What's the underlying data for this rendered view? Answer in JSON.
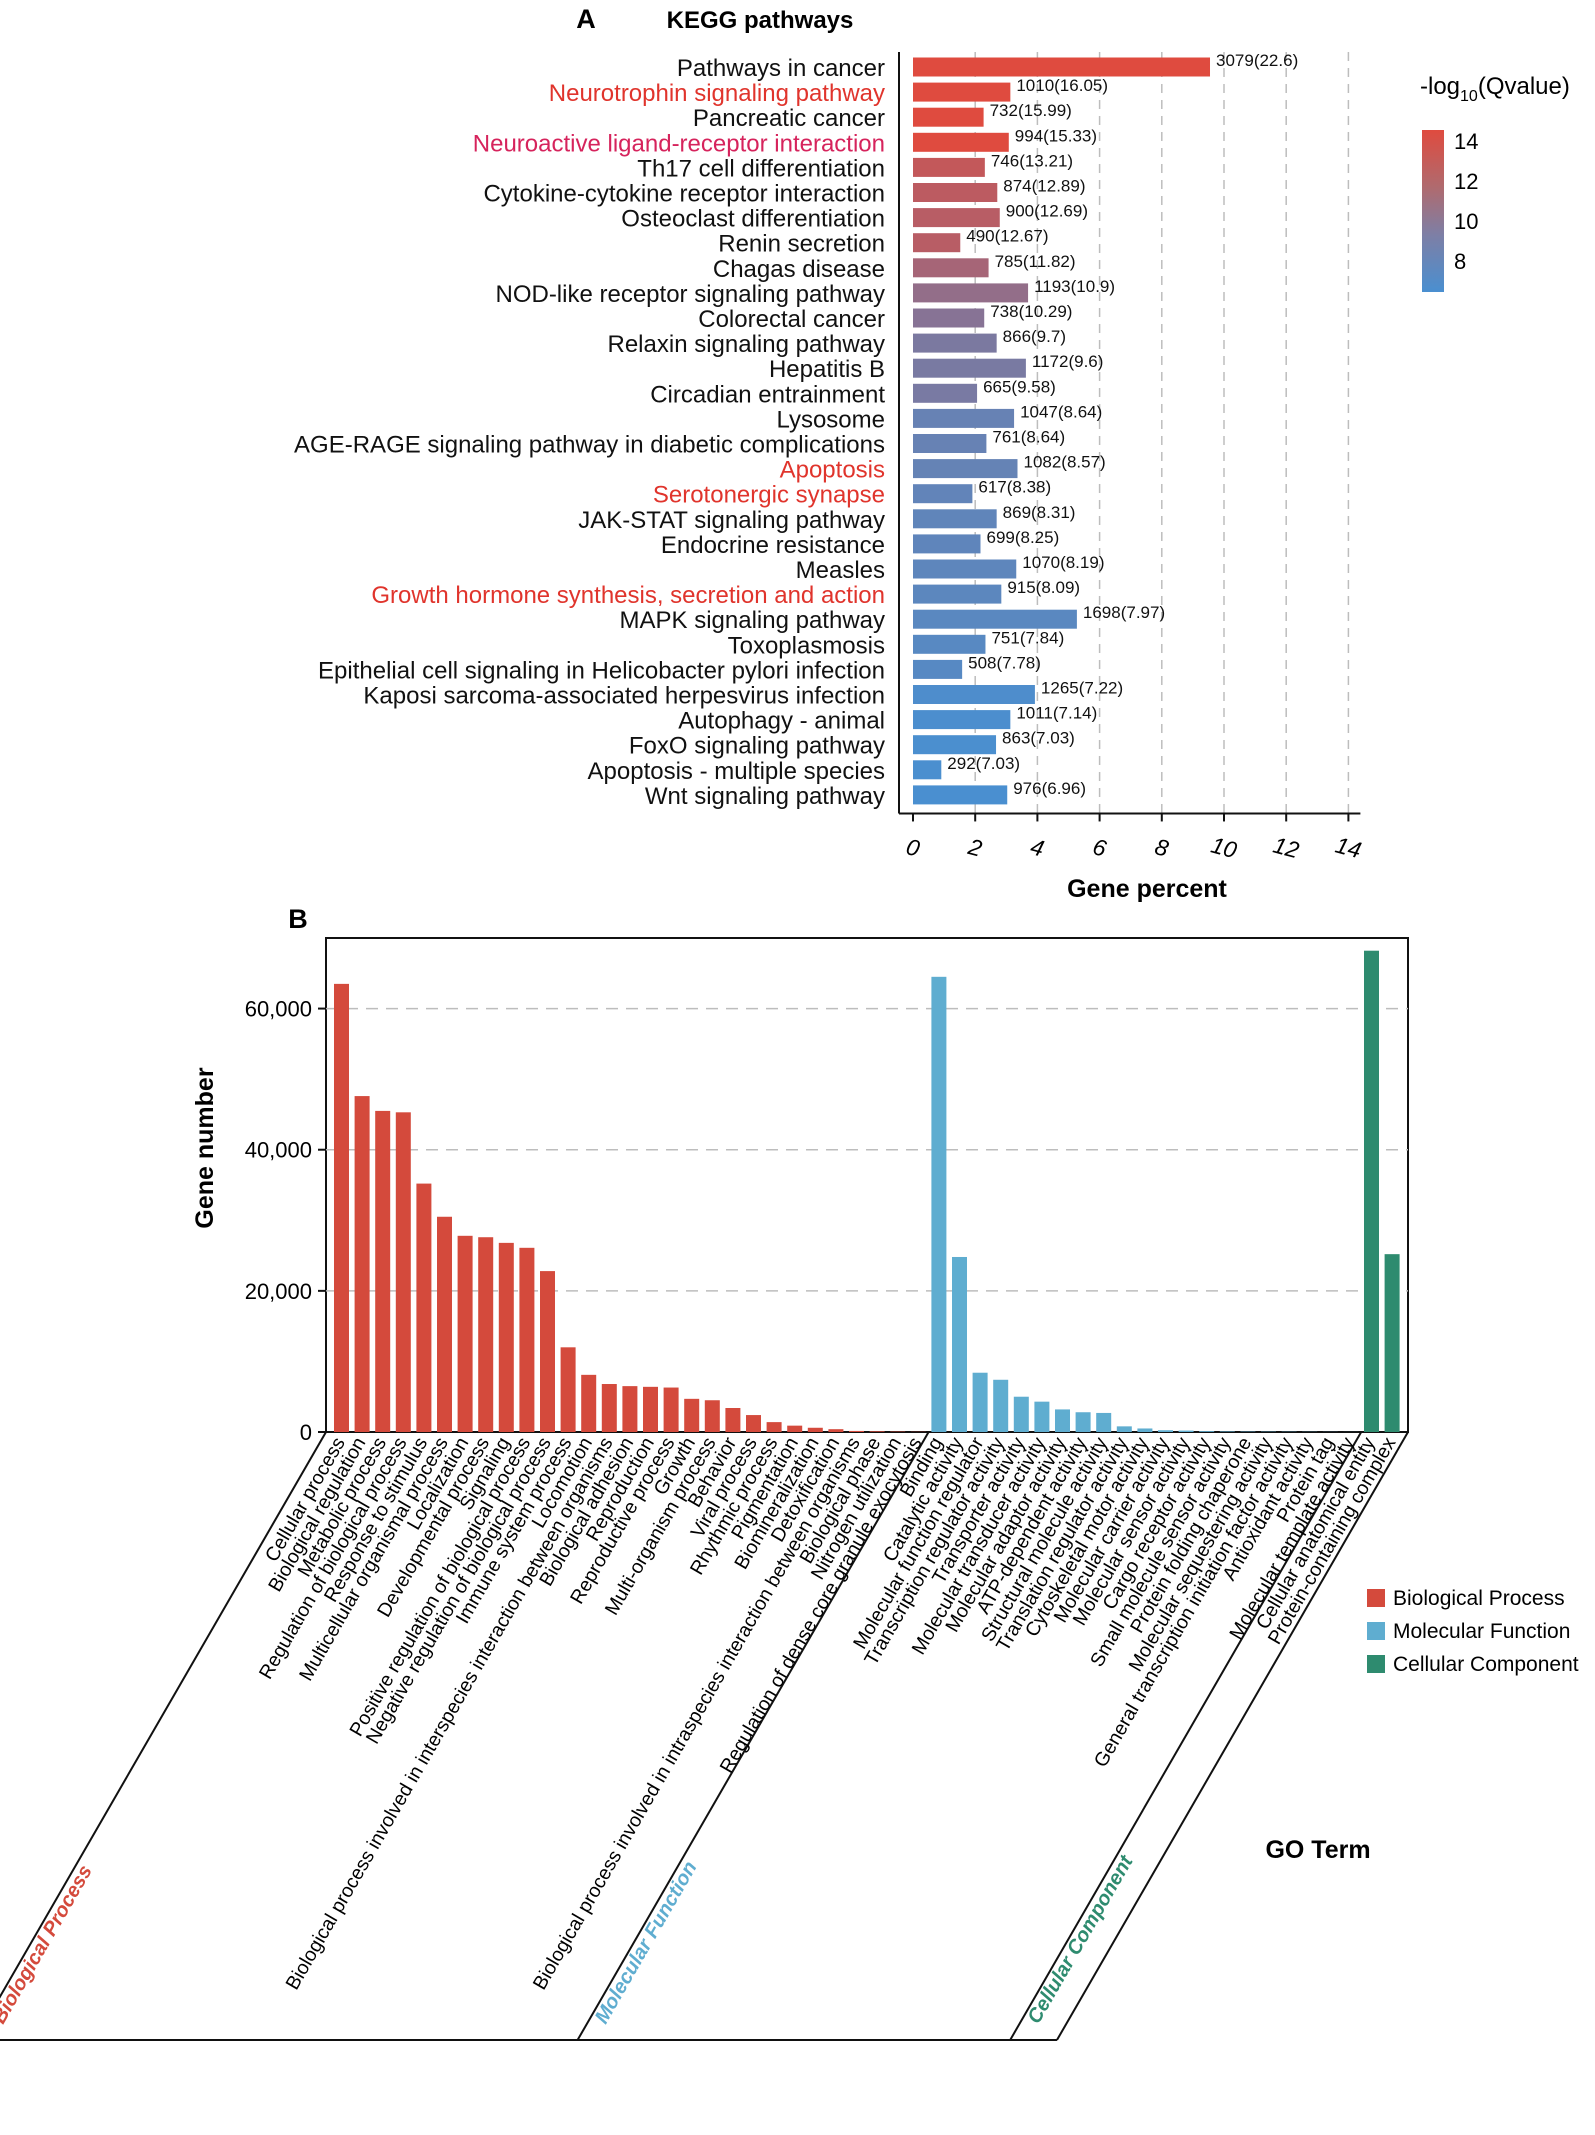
{
  "colors": {
    "red_label": "#e0342c",
    "magenta_label": "#d6235c",
    "bp": "#d44a3c",
    "mf": "#5fadd0",
    "cc": "#2e8b6f",
    "grid": "#bdbdbd",
    "axis": "#111111"
  },
  "chart_data": [
    {
      "panel": "A",
      "type": "bar",
      "orientation": "horizontal",
      "title": "KEGG pathways",
      "xlabel": "Gene percent",
      "xlim": [
        0,
        14
      ],
      "xticks": [
        "0",
        "2",
        "4",
        "6",
        "8",
        "10",
        "12",
        "14"
      ],
      "grid": "vertical dashed",
      "legend": {
        "title_prefix": "-log",
        "title_sub": "10",
        "title_suffix": "(Qvalue)",
        "ticks": [
          "14",
          "12",
          "10",
          "8"
        ],
        "placement": "top-right",
        "color_low": "#4a8fd0",
        "color_high": "#df4b3f",
        "range": [
          6.96,
          14.5
        ]
      },
      "highlight_colors": {
        "red": "#e0342c",
        "magenta": "#d6235c"
      },
      "bars": [
        {
          "label": "Pathways in cancer",
          "percent": 9.55,
          "count": 3079,
          "q": 22.6,
          "annotation": "3079(22.6)",
          "highlight": ""
        },
        {
          "label": "Neurotrophin signaling pathway",
          "percent": 3.13,
          "count": 1010,
          "q": 16.05,
          "annotation": "1010(16.05)",
          "highlight": "red"
        },
        {
          "label": "Pancreatic cancer",
          "percent": 2.27,
          "count": 732,
          "q": 15.99,
          "annotation": "732(15.99)",
          "highlight": ""
        },
        {
          "label": "Neuroactive ligand-receptor interaction",
          "percent": 3.08,
          "count": 994,
          "q": 15.33,
          "annotation": "994(15.33)",
          "highlight": "magenta"
        },
        {
          "label": "Th17 cell differentiation",
          "percent": 2.31,
          "count": 746,
          "q": 13.21,
          "annotation": "746(13.21)",
          "highlight": ""
        },
        {
          "label": "Cytokine-cytokine receptor interaction",
          "percent": 2.71,
          "count": 874,
          "q": 12.89,
          "annotation": "874(12.89)",
          "highlight": ""
        },
        {
          "label": "Osteoclast differentiation",
          "percent": 2.79,
          "count": 900,
          "q": 12.69,
          "annotation": "900(12.69)",
          "highlight": ""
        },
        {
          "label": "Renin secretion",
          "percent": 1.52,
          "count": 490,
          "q": 12.67,
          "annotation": "490(12.67)",
          "highlight": ""
        },
        {
          "label": "Chagas disease",
          "percent": 2.43,
          "count": 785,
          "q": 11.82,
          "annotation": "785(11.82)",
          "highlight": ""
        },
        {
          "label": "NOD-like receptor signaling pathway",
          "percent": 3.7,
          "count": 1193,
          "q": 10.9,
          "annotation": "1193(10.9)",
          "highlight": ""
        },
        {
          "label": "Colorectal cancer",
          "percent": 2.29,
          "count": 738,
          "q": 10.29,
          "annotation": "738(10.29)",
          "highlight": ""
        },
        {
          "label": "Relaxin signaling pathway",
          "percent": 2.69,
          "count": 866,
          "q": 9.7,
          "annotation": "866(9.7)",
          "highlight": ""
        },
        {
          "label": "Hepatitis B",
          "percent": 3.63,
          "count": 1172,
          "q": 9.6,
          "annotation": "1172(9.6)",
          "highlight": ""
        },
        {
          "label": "Circadian entrainment",
          "percent": 2.06,
          "count": 665,
          "q": 9.58,
          "annotation": "665(9.58)",
          "highlight": ""
        },
        {
          "label": "Lysosome",
          "percent": 3.25,
          "count": 1047,
          "q": 8.64,
          "annotation": "1047(8.64)",
          "highlight": ""
        },
        {
          "label": "AGE-RAGE signaling pathway in diabetic complications",
          "percent": 2.36,
          "count": 761,
          "q": 8.64,
          "annotation": "761(8.64)",
          "highlight": ""
        },
        {
          "label": "Apoptosis",
          "percent": 3.36,
          "count": 1082,
          "q": 8.57,
          "annotation": "1082(8.57)",
          "highlight": "red"
        },
        {
          "label": "Serotonergic synapse",
          "percent": 1.91,
          "count": 617,
          "q": 8.38,
          "annotation": "617(8.38)",
          "highlight": "red"
        },
        {
          "label": "JAK-STAT signaling pathway",
          "percent": 2.69,
          "count": 869,
          "q": 8.31,
          "annotation": "869(8.31)",
          "highlight": ""
        },
        {
          "label": "Endocrine resistance",
          "percent": 2.17,
          "count": 699,
          "q": 8.25,
          "annotation": "699(8.25)",
          "highlight": ""
        },
        {
          "label": "Measles",
          "percent": 3.32,
          "count": 1070,
          "q": 8.19,
          "annotation": "1070(8.19)",
          "highlight": ""
        },
        {
          "label": "Growth hormone synthesis, secretion and action",
          "percent": 2.84,
          "count": 915,
          "q": 8.09,
          "annotation": "915(8.09)",
          "highlight": "red"
        },
        {
          "label": "MAPK signaling pathway",
          "percent": 5.27,
          "count": 1698,
          "q": 7.97,
          "annotation": "1698(7.97)",
          "highlight": ""
        },
        {
          "label": "Toxoplasmosis",
          "percent": 2.33,
          "count": 751,
          "q": 7.84,
          "annotation": "751(7.84)",
          "highlight": ""
        },
        {
          "label": "Epithelial cell signaling in Helicobacter pylori infection",
          "percent": 1.58,
          "count": 508,
          "q": 7.78,
          "annotation": "508(7.78)",
          "highlight": ""
        },
        {
          "label": "Kaposi sarcoma-associated herpesvirus infection",
          "percent": 3.92,
          "count": 1265,
          "q": 7.22,
          "annotation": "1265(7.22)",
          "highlight": ""
        },
        {
          "label": "Autophagy - animal",
          "percent": 3.13,
          "count": 1011,
          "q": 7.14,
          "annotation": "1011(7.14)",
          "highlight": ""
        },
        {
          "label": "FoxO signaling pathway",
          "percent": 2.67,
          "count": 863,
          "q": 7.03,
          "annotation": "863(7.03)",
          "highlight": ""
        },
        {
          "label": "Apoptosis - multiple species",
          "percent": 0.91,
          "count": 292,
          "q": 7.03,
          "annotation": "292(7.03)",
          "highlight": ""
        },
        {
          "label": "Wnt signaling pathway",
          "percent": 3.03,
          "count": 976,
          "q": 6.96,
          "annotation": "976(6.96)",
          "highlight": ""
        }
      ]
    },
    {
      "panel": "B",
      "type": "bar",
      "orientation": "vertical",
      "xlabel": "GO Term",
      "ylabel": "Gene number",
      "ylim": [
        0,
        70000
      ],
      "yticks": [
        0,
        20000,
        40000,
        60000
      ],
      "ytick_labels": [
        "0",
        "20,000",
        "40,000",
        "60,000"
      ],
      "grid": "horizontal dashed",
      "legend": {
        "placement": "right",
        "entries": [
          {
            "name": "Biological Process",
            "color": "#d44a3c"
          },
          {
            "name": "Molecular Function",
            "color": "#5fadd0"
          },
          {
            "name": "Cellular Component",
            "color": "#2e8b6f"
          }
        ]
      },
      "group_labels": [
        {
          "name": "Biological Process",
          "color": "#d44a3c"
        },
        {
          "name": "Molecular Function",
          "color": "#5fadd0"
        },
        {
          "name": "Cellular Component",
          "color": "#2e8b6f"
        }
      ],
      "series": [
        {
          "name": "Biological Process",
          "color": "#d44a3c",
          "categories": [
            "Cellular process",
            "Biological regulation",
            "Metabolic process",
            "Regulation of biological process",
            "Response to stimulus",
            "Multicellular organismal process",
            "Localization",
            "Developmental process",
            "Signaling",
            "Positive regulation of biological process",
            "Negative regulation of biological process",
            "Immune system process",
            "Locomotion",
            "Biological process involved in interspecies interaction between organisms",
            "Biological adhesion",
            "Reproduction",
            "Reproductive process",
            "Growth",
            "Multi-organism process",
            "Behavior",
            "Viral process",
            "Rhythmic process",
            "Pigmentation",
            "Biomineralization",
            "Detoxification",
            "Biological process involved in intraspecies interaction between organisms",
            "Biological phase",
            "Nitrogen utilization",
            "Regulation of dense core granule exocytosis"
          ],
          "values": [
            63500,
            47600,
            45500,
            45300,
            35200,
            30500,
            27800,
            27600,
            26800,
            26100,
            22800,
            12000,
            8100,
            6800,
            6500,
            6400,
            6300,
            4700,
            4500,
            3400,
            2400,
            1400,
            900,
            600,
            400,
            150,
            100,
            60,
            30
          ]
        },
        {
          "name": "Molecular Function",
          "color": "#5fadd0",
          "categories": [
            "Binding",
            "Catalytic activity",
            "Molecular function regulator",
            "Transcription regulator activity",
            "Transporter activity",
            "Molecular transducer activity",
            "Molecular adaptor activity",
            "ATP-dependent activity",
            "Structural molecule activity",
            "Translation regulator activity",
            "Cytoskeletal motor activity",
            "Molecular carrier activity",
            "Molecular sensor activity",
            "Cargo receptor activity",
            "Small molecule sensor activity",
            "Protein folding chaperone",
            "Molecular sequestering activity",
            "General transcription initiation factor activity",
            "Antioxidant activity",
            "Protein tag",
            "Molecular template activity"
          ],
          "values": [
            64500,
            24800,
            8400,
            7400,
            5000,
            4300,
            3200,
            2800,
            2700,
            800,
            500,
            250,
            200,
            120,
            80,
            60,
            50,
            40,
            30,
            20,
            10
          ]
        },
        {
          "name": "Cellular Component",
          "color": "#2e8b6f",
          "categories": [
            "Cellular anatomical entity",
            "Protein-containing complex"
          ],
          "values": [
            68200,
            25200
          ]
        }
      ]
    }
  ],
  "panel_a": {
    "letter": "A"
  },
  "panel_b": {
    "letter": "B"
  }
}
